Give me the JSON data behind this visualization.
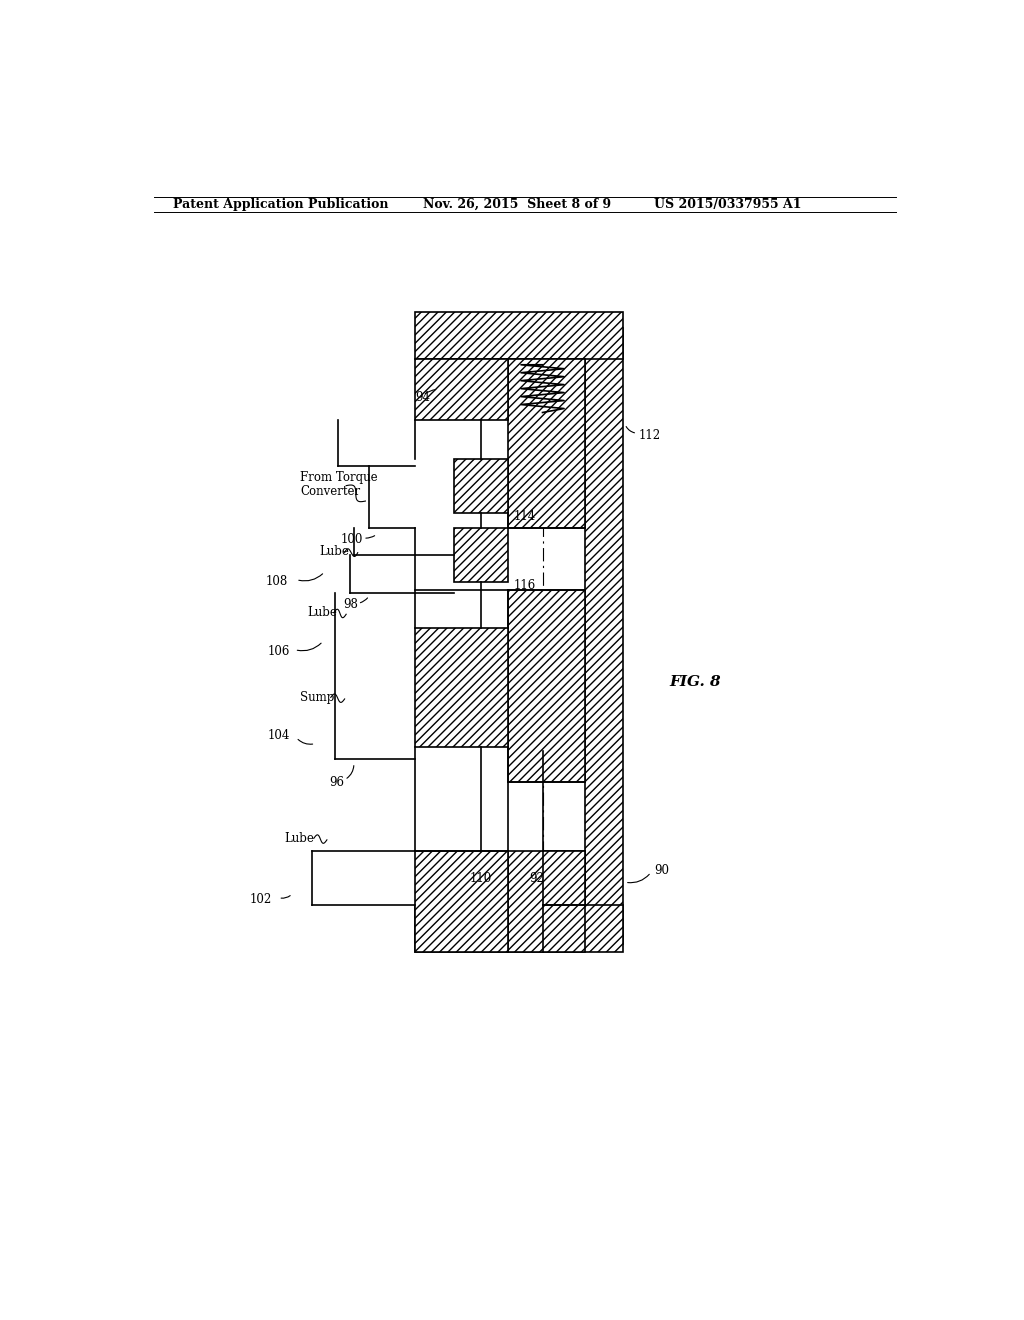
{
  "title_left": "Patent Application Publication",
  "title_mid": "Nov. 26, 2015  Sheet 8 of 9",
  "title_right": "US 2015/0337955 A1",
  "fig_label": "FIG. 8",
  "bg_color": "#ffffff",
  "line_color": "#000000",
  "text_color": "#000000",
  "hatch_pattern": "////",
  "hatch_lw": 0.5,
  "main_lw": 1.2,
  "header_fontsize": 9,
  "label_fontsize": 8.5,
  "fig_fontsize": 11
}
